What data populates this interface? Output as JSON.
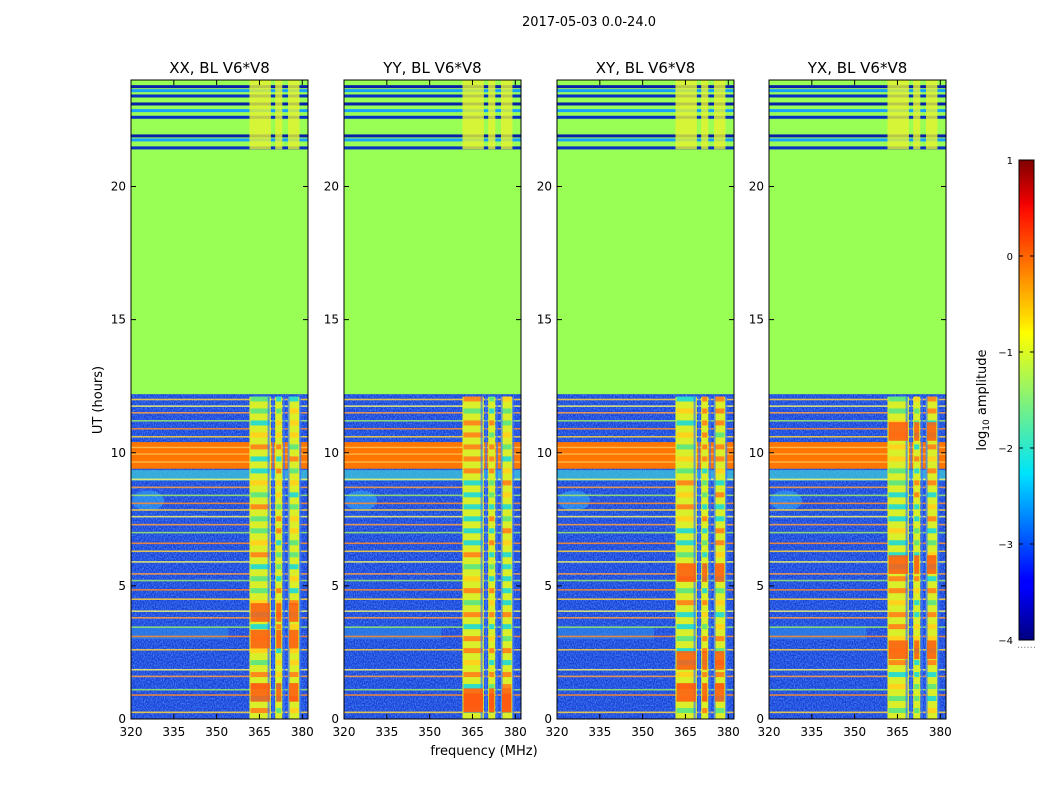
{
  "chart_data": {
    "type": "heatmap",
    "suptitle": "2017-05-03 0.0-24.0",
    "xlabel": "frequency (MHz)",
    "ylabel": "UT (hours)",
    "xlim": [
      320,
      382
    ],
    "ylim": [
      0,
      24
    ],
    "xticks": [
      320,
      335,
      350,
      365,
      380
    ],
    "yticks": [
      0,
      5,
      10,
      15,
      20
    ],
    "panels": [
      {
        "title": "XX, BL V6*V8",
        "bright_bands": [
          [
            4.0,
            2.4
          ],
          [
            3.0,
            2.5
          ],
          [
            1.0,
            2.2
          ]
        ]
      },
      {
        "title": "YY, BL V6*V8",
        "bright_bands": [
          [
            0.6,
            2.6
          ],
          [
            0.8,
            2.7
          ],
          [
            0.6,
            2.5
          ]
        ]
      },
      {
        "title": "XY, BL V6*V8",
        "bright_bands": [
          [
            5.5,
            2.4
          ],
          [
            2.2,
            2.6
          ],
          [
            1.0,
            2.3
          ]
        ]
      },
      {
        "title": "YX, BL V6*V8",
        "bright_bands": [
          [
            10.8,
            2.4
          ],
          [
            5.8,
            2.5
          ],
          [
            2.6,
            2.3
          ]
        ]
      }
    ],
    "regions": [
      {
        "name": "flagged-fill",
        "ut_range": [
          12.2,
          21.4
        ],
        "log_amplitude": -1.3
      },
      {
        "name": "rfi-band",
        "ut_range": [
          9.4,
          10.4
        ],
        "log_amplitude": 0.0
      },
      {
        "name": "background",
        "log_amplitude": -3.5
      },
      {
        "name": "rfi-channels",
        "freq_ranges_mhz": [
          [
            361.5,
            369
          ],
          [
            370.5,
            373
          ],
          [
            375,
            379
          ]
        ],
        "log_amplitude": -1.0
      }
    ],
    "colorbar": {
      "label": "log$_{10}$ amplitude",
      "min": -4,
      "max": 1,
      "ticks": [
        1,
        0,
        -1,
        -2,
        -3,
        -4
      ],
      "tick_labels": [
        "1",
        "0",
        "−1",
        "−2",
        "−3",
        "−4"
      ],
      "colormap": "jet",
      "footer": "......"
    },
    "colors": {
      "flagged": "#99ff55",
      "background": "#1a3fd8",
      "rfi": "#ff7700",
      "frame": "#000000"
    }
  }
}
